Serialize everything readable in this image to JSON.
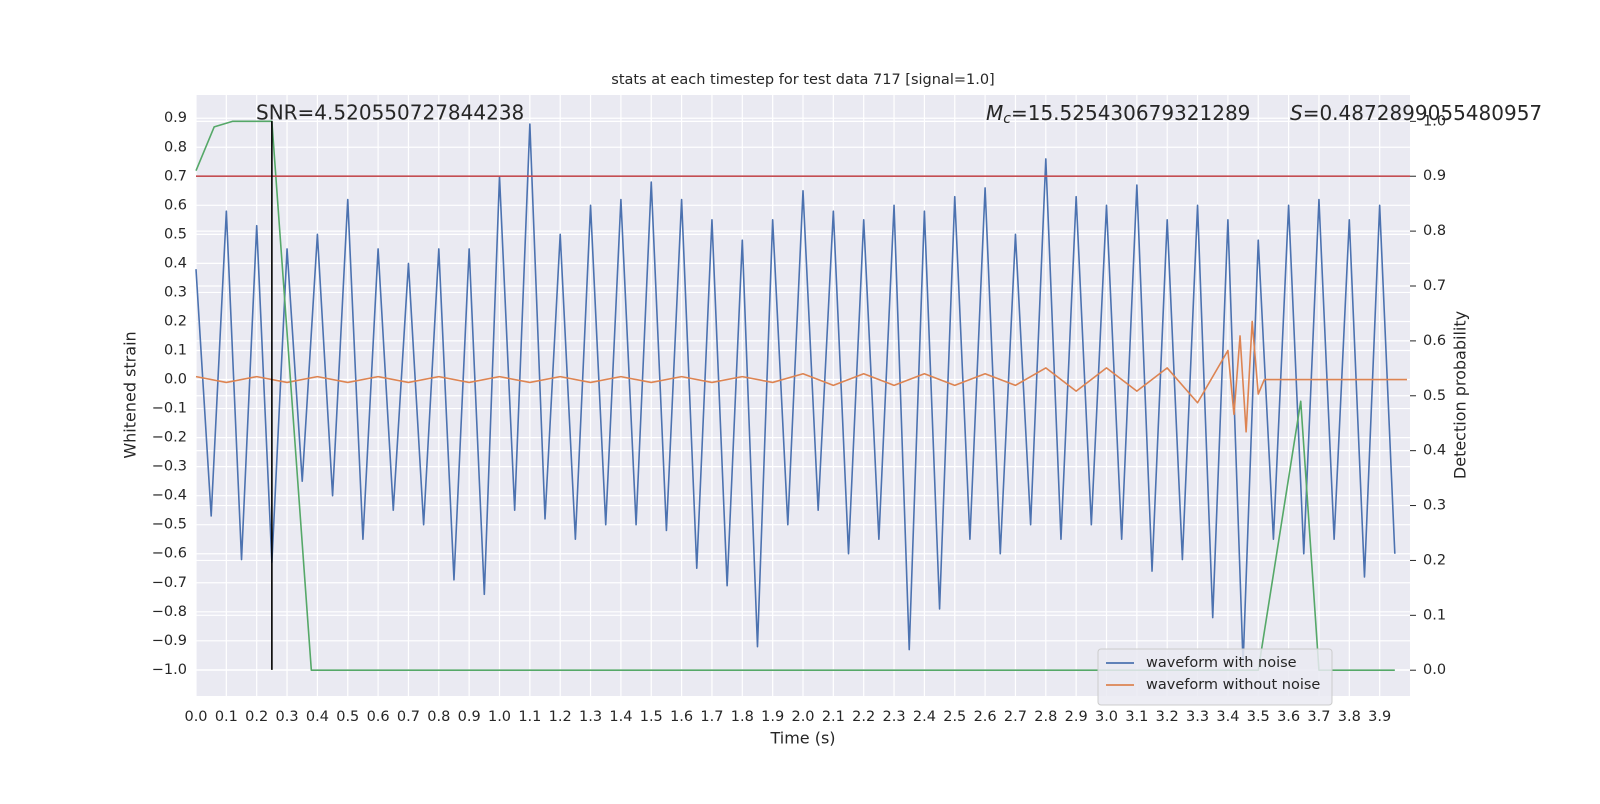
{
  "chart_data": {
    "type": "line",
    "title": "stats at each timestep for test data 717 [signal=1.0]",
    "x_label": "Time (s)",
    "y_label": "Whitened strain",
    "y2_label": "Detection probability",
    "annotations": [
      {
        "text": "SNR=4.520550727844238"
      },
      {
        "symbol": "M",
        "subscript": "c",
        "text": "=15.525430679321289"
      },
      {
        "symbol": "S",
        "text": "=0.4872899055480957"
      }
    ],
    "xlim": [
      0,
      4.0
    ],
    "ylim": [
      -1.09,
      0.98
    ],
    "y2lim": [
      -0.047,
      1.048
    ],
    "grid": true,
    "legend": "lower right",
    "xticks": [
      {
        "value": 0,
        "label": "0.0"
      },
      0.1,
      0.2,
      0.3,
      0.4,
      0.5,
      0.6,
      0.7,
      0.8,
      0.9,
      {
        "value": 1,
        "label": "1.0"
      },
      1.1,
      1.2,
      1.3,
      1.4,
      1.5,
      1.6,
      1.7,
      1.8,
      1.9,
      {
        "value": 2,
        "label": "2.0"
      },
      2.1,
      2.2,
      2.3,
      2.4,
      2.5,
      2.6,
      2.7,
      2.8,
      2.9,
      {
        "value": 3,
        "label": "3.0"
      },
      3.1,
      3.2,
      3.3,
      3.4,
      3.5,
      3.6,
      3.7,
      3.8,
      3.9
    ],
    "yticks": [
      {
        "value": -1,
        "label": "−1.0"
      },
      {
        "value": -0.9,
        "label": "−0.9"
      },
      {
        "value": -0.8,
        "label": "−0.8"
      },
      {
        "value": -0.7,
        "label": "−0.7"
      },
      {
        "value": -0.6,
        "label": "−0.6"
      },
      {
        "value": -0.5,
        "label": "−0.5"
      },
      {
        "value": -0.4,
        "label": "−0.4"
      },
      {
        "value": -0.3,
        "label": "−0.3"
      },
      {
        "value": -0.2,
        "label": "−0.2"
      },
      {
        "value": -0.1,
        "label": "−0.1"
      },
      {
        "value": 0,
        "label": "0.0"
      },
      0.1,
      0.2,
      0.3,
      0.4,
      0.5,
      0.6,
      0.7,
      0.8,
      0.9
    ],
    "y2ticks": [
      {
        "value": 0,
        "label": "0.0"
      },
      0.1,
      0.2,
      0.3,
      0.4,
      0.5,
      0.6,
      0.7,
      0.8,
      0.9,
      {
        "value": 1,
        "label": "1.0"
      }
    ],
    "series": [
      {
        "name": "waveform with noise",
        "color": "#4c72b0",
        "x": [
          0,
          0.05,
          0.1,
          0.15,
          0.2,
          0.25,
          0.3,
          0.35,
          0.4,
          0.45,
          0.5,
          0.55,
          0.6,
          0.65,
          0.7,
          0.75,
          0.8,
          0.85,
          0.9,
          0.95,
          1.0,
          1.05,
          1.1,
          1.15,
          1.2,
          1.25,
          1.3,
          1.35,
          1.4,
          1.45,
          1.5,
          1.55,
          1.6,
          1.65,
          1.7,
          1.75,
          1.8,
          1.85,
          1.9,
          1.95,
          2.0,
          2.05,
          2.1,
          2.15,
          2.2,
          2.25,
          2.3,
          2.35,
          2.4,
          2.45,
          2.5,
          2.55,
          2.6,
          2.65,
          2.7,
          2.75,
          2.8,
          2.85,
          2.9,
          2.95,
          3.0,
          3.05,
          3.1,
          3.15,
          3.2,
          3.25,
          3.3,
          3.35,
          3.4,
          3.45,
          3.5,
          3.55,
          3.6,
          3.65,
          3.7,
          3.75,
          3.8,
          3.85,
          3.9,
          3.95
        ],
        "values": [
          0.38,
          -0.47,
          0.58,
          -0.62,
          0.53,
          -0.63,
          0.45,
          -0.35,
          0.5,
          -0.4,
          0.62,
          -0.55,
          0.45,
          -0.45,
          0.4,
          -0.5,
          0.45,
          -0.69,
          0.45,
          -0.74,
          0.7,
          -0.45,
          0.88,
          -0.48,
          0.5,
          -0.55,
          0.6,
          -0.5,
          0.62,
          -0.5,
          0.68,
          -0.52,
          0.62,
          -0.65,
          0.55,
          -0.71,
          0.48,
          -0.92,
          0.55,
          -0.5,
          0.65,
          -0.45,
          0.58,
          -0.6,
          0.55,
          -0.55,
          0.6,
          -0.93,
          0.58,
          -0.79,
          0.63,
          -0.55,
          0.66,
          -0.6,
          0.5,
          -0.5,
          0.76,
          -0.55,
          0.63,
          -0.5,
          0.6,
          -0.55,
          0.67,
          -0.66,
          0.55,
          -0.62,
          0.6,
          -0.82,
          0.55,
          -0.98,
          0.48,
          -0.55,
          0.6,
          -0.6,
          0.62,
          -0.55,
          0.55,
          -0.68,
          0.6,
          -0.6
        ]
      },
      {
        "name": "waveform without noise",
        "color": "#dd8452",
        "x": [
          0,
          0.1,
          0.2,
          0.3,
          0.4,
          0.5,
          0.6,
          0.7,
          0.8,
          0.9,
          1.0,
          1.1,
          1.2,
          1.3,
          1.4,
          1.5,
          1.6,
          1.7,
          1.8,
          1.9,
          2.0,
          2.1,
          2.2,
          2.3,
          2.4,
          2.5,
          2.6,
          2.7,
          2.8,
          2.9,
          3.0,
          3.1,
          3.2,
          3.3,
          3.4,
          3.42,
          3.44,
          3.46,
          3.48,
          3.5,
          3.52,
          3.99
        ],
        "values": [
          0.01,
          -0.01,
          0.01,
          -0.01,
          0.01,
          -0.01,
          0.01,
          -0.01,
          0.01,
          -0.01,
          0.01,
          -0.01,
          0.01,
          -0.01,
          0.01,
          -0.01,
          0.01,
          -0.01,
          0.01,
          -0.01,
          0.02,
          -0.02,
          0.02,
          -0.02,
          0.02,
          -0.02,
          0.02,
          -0.02,
          0.04,
          -0.04,
          0.04,
          -0.04,
          0.04,
          -0.08,
          0.1,
          -0.12,
          0.15,
          -0.18,
          0.2,
          -0.05,
          0,
          0
        ]
      },
      {
        "color": "#55a868",
        "axis": "y2",
        "x": [
          0,
          0.06,
          0.12,
          0.25,
          0.38,
          3.5,
          3.64,
          3.7,
          3.95
        ],
        "values": [
          0.91,
          0.99,
          1.0,
          1.0,
          0.0,
          0.0,
          0.49,
          0.0,
          0.0
        ]
      }
    ],
    "hline": {
      "y2": 0.9,
      "color": "#c44e52"
    },
    "vline": {
      "x": 0.25,
      "ymin": -1.0,
      "ymax": 0.89,
      "color": "#000000"
    }
  }
}
